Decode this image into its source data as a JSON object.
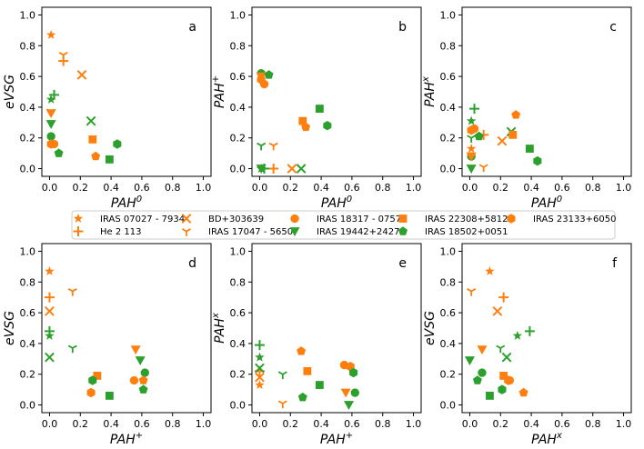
{
  "colors": {
    "orange": "#ff7f0e",
    "green": "#2ca02c"
  },
  "chart_data": {
    "type": "scatter",
    "grid": false,
    "legend_placement": "center, between rows",
    "legend": [
      {
        "name": "IRAS 07027 - 7934",
        "marker": "star"
      },
      {
        "name": "He 2 113",
        "marker": "plus"
      },
      {
        "name": "BD+303639",
        "marker": "x"
      },
      {
        "name": "IRAS 17047 - 5650",
        "marker": "tri_down"
      },
      {
        "name": "IRAS 18317 - 0757",
        "marker": "circle"
      },
      {
        "name": "IRAS 19442+2427",
        "marker": "triangle_down"
      },
      {
        "name": "IRAS 22308+5812",
        "marker": "square"
      },
      {
        "name": "IRAS 18502+0051",
        "marker": "pentagon"
      },
      {
        "name": "IRAS 23133+6050",
        "marker": "hexagon"
      }
    ],
    "panels": [
      {
        "label": "a",
        "xlabel": "PAH",
        "xsup": "0",
        "ylabel": "eVSG",
        "ysup": "",
        "xlim": [
          -0.05,
          1.05
        ],
        "ylim": [
          -0.05,
          1.05
        ],
        "xticks": [
          "0.0",
          "0.2",
          "0.4",
          "0.6",
          "0.8",
          "1.0"
        ],
        "yticks": [
          "0.0",
          "0.2",
          "0.4",
          "0.6",
          "0.8",
          "1.0"
        ],
        "points": [
          {
            "m": "star",
            "c": "orange",
            "x": 0.01,
            "y": 0.87
          },
          {
            "m": "star",
            "c": "green",
            "x": 0.01,
            "y": 0.45
          },
          {
            "m": "plus",
            "c": "orange",
            "x": 0.09,
            "y": 0.7
          },
          {
            "m": "plus",
            "c": "green",
            "x": 0.03,
            "y": 0.48
          },
          {
            "m": "x",
            "c": "orange",
            "x": 0.21,
            "y": 0.61
          },
          {
            "m": "x",
            "c": "green",
            "x": 0.27,
            "y": 0.31
          },
          {
            "m": "tri_down",
            "c": "orange",
            "x": 0.09,
            "y": 0.74
          },
          {
            "m": "tri_down",
            "c": "green",
            "x": 0.01,
            "y": 0.37
          },
          {
            "m": "circle",
            "c": "orange",
            "x": 0.03,
            "y": 0.16
          },
          {
            "m": "circle",
            "c": "green",
            "x": 0.01,
            "y": 0.21
          },
          {
            "m": "triangle_down",
            "c": "orange",
            "x": 0.01,
            "y": 0.36
          },
          {
            "m": "triangle_down",
            "c": "green",
            "x": 0.01,
            "y": 0.29
          },
          {
            "m": "square",
            "c": "orange",
            "x": 0.28,
            "y": 0.19
          },
          {
            "m": "square",
            "c": "green",
            "x": 0.39,
            "y": 0.06
          },
          {
            "m": "pentagon",
            "c": "orange",
            "x": 0.3,
            "y": 0.08
          },
          {
            "m": "pentagon",
            "c": "green",
            "x": 0.06,
            "y": 0.1
          },
          {
            "m": "hexagon",
            "c": "orange",
            "x": 0.01,
            "y": 0.16
          },
          {
            "m": "hexagon",
            "c": "green",
            "x": 0.44,
            "y": 0.16
          }
        ]
      },
      {
        "label": "b",
        "xlabel": "PAH",
        "xsup": "0",
        "ylabel": "PAH",
        "ysup": "+",
        "xlim": [
          -0.05,
          1.05
        ],
        "ylim": [
          -0.05,
          1.05
        ],
        "xticks": [
          "0.0",
          "0.2",
          "0.4",
          "0.6",
          "0.8",
          "1.0"
        ],
        "yticks": [
          "0.0",
          "0.2",
          "0.4",
          "0.6",
          "0.8",
          "1.0"
        ],
        "points": [
          {
            "m": "star",
            "c": "orange",
            "x": 0.01,
            "y": 0.0
          },
          {
            "m": "star",
            "c": "green",
            "x": 0.01,
            "y": 0.0
          },
          {
            "m": "plus",
            "c": "orange",
            "x": 0.09,
            "y": 0.0
          },
          {
            "m": "plus",
            "c": "green",
            "x": 0.03,
            "y": 0.0
          },
          {
            "m": "x",
            "c": "orange",
            "x": 0.21,
            "y": 0.0
          },
          {
            "m": "x",
            "c": "green",
            "x": 0.27,
            "y": 0.0
          },
          {
            "m": "tri_down",
            "c": "orange",
            "x": 0.09,
            "y": 0.15
          },
          {
            "m": "tri_down",
            "c": "green",
            "x": 0.01,
            "y": 0.15
          },
          {
            "m": "circle",
            "c": "orange",
            "x": 0.03,
            "y": 0.55
          },
          {
            "m": "circle",
            "c": "green",
            "x": 0.01,
            "y": 0.62
          },
          {
            "m": "triangle_down",
            "c": "orange",
            "x": 0.01,
            "y": 0.6
          },
          {
            "m": "triangle_down",
            "c": "green",
            "x": 0.01,
            "y": 0.0
          },
          {
            "m": "square",
            "c": "orange",
            "x": 0.28,
            "y": 0.31
          },
          {
            "m": "square",
            "c": "green",
            "x": 0.39,
            "y": 0.39
          },
          {
            "m": "pentagon",
            "c": "orange",
            "x": 0.3,
            "y": 0.27
          },
          {
            "m": "pentagon",
            "c": "green",
            "x": 0.06,
            "y": 0.61
          },
          {
            "m": "hexagon",
            "c": "orange",
            "x": 0.01,
            "y": 0.58
          },
          {
            "m": "hexagon",
            "c": "green",
            "x": 0.44,
            "y": 0.28
          }
        ]
      },
      {
        "label": "c",
        "xlabel": "PAH",
        "xsup": "0",
        "ylabel": "PAH",
        "ysup": "x",
        "xlim": [
          -0.05,
          1.05
        ],
        "ylim": [
          -0.05,
          1.05
        ],
        "xticks": [
          "0.0",
          "0.2",
          "0.4",
          "0.6",
          "0.8",
          "1.0"
        ],
        "yticks": [
          "0.0",
          "0.2",
          "0.4",
          "0.6",
          "0.8",
          "1.0"
        ],
        "points": [
          {
            "m": "star",
            "c": "orange",
            "x": 0.01,
            "y": 0.13
          },
          {
            "m": "star",
            "c": "green",
            "x": 0.01,
            "y": 0.31
          },
          {
            "m": "plus",
            "c": "orange",
            "x": 0.09,
            "y": 0.22
          },
          {
            "m": "plus",
            "c": "green",
            "x": 0.03,
            "y": 0.39
          },
          {
            "m": "x",
            "c": "orange",
            "x": 0.21,
            "y": 0.18
          },
          {
            "m": "x",
            "c": "green",
            "x": 0.27,
            "y": 0.24
          },
          {
            "m": "tri_down",
            "c": "orange",
            "x": 0.09,
            "y": 0.01
          },
          {
            "m": "tri_down",
            "c": "green",
            "x": 0.01,
            "y": 0.2
          },
          {
            "m": "circle",
            "c": "orange",
            "x": 0.03,
            "y": 0.26
          },
          {
            "m": "circle",
            "c": "green",
            "x": 0.01,
            "y": 0.08
          },
          {
            "m": "triangle_down",
            "c": "orange",
            "x": 0.01,
            "y": 0.08
          },
          {
            "m": "triangle_down",
            "c": "green",
            "x": 0.01,
            "y": 0.0
          },
          {
            "m": "square",
            "c": "orange",
            "x": 0.28,
            "y": 0.22
          },
          {
            "m": "square",
            "c": "green",
            "x": 0.39,
            "y": 0.13
          },
          {
            "m": "pentagon",
            "c": "orange",
            "x": 0.3,
            "y": 0.35
          },
          {
            "m": "pentagon",
            "c": "green",
            "x": 0.06,
            "y": 0.21
          },
          {
            "m": "hexagon",
            "c": "orange",
            "x": 0.01,
            "y": 0.25
          },
          {
            "m": "hexagon",
            "c": "green",
            "x": 0.44,
            "y": 0.05
          }
        ]
      },
      {
        "label": "d",
        "xlabel": "PAH",
        "xsup": "+",
        "ylabel": "eVSG",
        "ysup": "",
        "xlim": [
          -0.05,
          1.05
        ],
        "ylim": [
          -0.05,
          1.05
        ],
        "xticks": [
          "0.0",
          "0.2",
          "0.4",
          "0.6",
          "0.8",
          "1.0"
        ],
        "yticks": [
          "0.0",
          "0.2",
          "0.4",
          "0.6",
          "0.8",
          "1.0"
        ],
        "points": [
          {
            "m": "star",
            "c": "orange",
            "x": 0.0,
            "y": 0.87
          },
          {
            "m": "star",
            "c": "green",
            "x": 0.0,
            "y": 0.45
          },
          {
            "m": "plus",
            "c": "orange",
            "x": 0.0,
            "y": 0.7
          },
          {
            "m": "plus",
            "c": "green",
            "x": 0.0,
            "y": 0.48
          },
          {
            "m": "x",
            "c": "orange",
            "x": 0.0,
            "y": 0.61
          },
          {
            "m": "x",
            "c": "green",
            "x": 0.0,
            "y": 0.31
          },
          {
            "m": "tri_down",
            "c": "orange",
            "x": 0.15,
            "y": 0.74
          },
          {
            "m": "tri_down",
            "c": "green",
            "x": 0.15,
            "y": 0.37
          },
          {
            "m": "circle",
            "c": "orange",
            "x": 0.55,
            "y": 0.16
          },
          {
            "m": "circle",
            "c": "green",
            "x": 0.62,
            "y": 0.21
          },
          {
            "m": "triangle_down",
            "c": "orange",
            "x": 0.56,
            "y": 0.36
          },
          {
            "m": "triangle_down",
            "c": "green",
            "x": 0.59,
            "y": 0.29
          },
          {
            "m": "square",
            "c": "orange",
            "x": 0.31,
            "y": 0.19
          },
          {
            "m": "square",
            "c": "green",
            "x": 0.39,
            "y": 0.06
          },
          {
            "m": "pentagon",
            "c": "orange",
            "x": 0.61,
            "y": 0.16
          },
          {
            "m": "pentagon",
            "c": "green",
            "x": 0.61,
            "y": 0.1
          },
          {
            "m": "hexagon",
            "c": "orange",
            "x": 0.27,
            "y": 0.08
          },
          {
            "m": "hexagon",
            "c": "green",
            "x": 0.28,
            "y": 0.16
          }
        ]
      },
      {
        "label": "e",
        "xlabel": "PAH",
        "xsup": "+",
        "ylabel": "PAH",
        "ysup": "x",
        "xlim": [
          -0.05,
          1.05
        ],
        "ylim": [
          -0.05,
          1.05
        ],
        "xticks": [
          "0.0",
          "0.2",
          "0.4",
          "0.6",
          "0.8",
          "1.0"
        ],
        "yticks": [
          "0.0",
          "0.2",
          "0.4",
          "0.6",
          "0.8",
          "1.0"
        ],
        "points": [
          {
            "m": "star",
            "c": "orange",
            "x": 0.0,
            "y": 0.13
          },
          {
            "m": "star",
            "c": "green",
            "x": 0.0,
            "y": 0.31
          },
          {
            "m": "plus",
            "c": "orange",
            "x": 0.0,
            "y": 0.22
          },
          {
            "m": "plus",
            "c": "green",
            "x": 0.0,
            "y": 0.39
          },
          {
            "m": "x",
            "c": "orange",
            "x": 0.0,
            "y": 0.18
          },
          {
            "m": "x",
            "c": "green",
            "x": 0.0,
            "y": 0.24
          },
          {
            "m": "tri_down",
            "c": "orange",
            "x": 0.15,
            "y": 0.01
          },
          {
            "m": "tri_down",
            "c": "green",
            "x": 0.15,
            "y": 0.2
          },
          {
            "m": "circle",
            "c": "orange",
            "x": 0.55,
            "y": 0.26
          },
          {
            "m": "circle",
            "c": "green",
            "x": 0.62,
            "y": 0.08
          },
          {
            "m": "triangle_down",
            "c": "orange",
            "x": 0.56,
            "y": 0.08
          },
          {
            "m": "triangle_down",
            "c": "green",
            "x": 0.58,
            "y": 0.0
          },
          {
            "m": "square",
            "c": "orange",
            "x": 0.31,
            "y": 0.22
          },
          {
            "m": "square",
            "c": "green",
            "x": 0.39,
            "y": 0.13
          },
          {
            "m": "pentagon",
            "c": "orange",
            "x": 0.27,
            "y": 0.35
          },
          {
            "m": "pentagon",
            "c": "green",
            "x": 0.28,
            "y": 0.05
          },
          {
            "m": "hexagon",
            "c": "orange",
            "x": 0.59,
            "y": 0.25
          },
          {
            "m": "hexagon",
            "c": "green",
            "x": 0.61,
            "y": 0.21
          }
        ]
      },
      {
        "label": "f",
        "xlabel": "PAH",
        "xsup": "x",
        "ylabel": "eVSG",
        "ysup": "",
        "xlim": [
          -0.05,
          1.05
        ],
        "ylim": [
          -0.05,
          1.05
        ],
        "xticks": [
          "0.0",
          "0.2",
          "0.4",
          "0.6",
          "0.8",
          "1.0"
        ],
        "yticks": [
          "0.0",
          "0.2",
          "0.4",
          "0.6",
          "0.8",
          "1.0"
        ],
        "points": [
          {
            "m": "star",
            "c": "orange",
            "x": 0.13,
            "y": 0.87
          },
          {
            "m": "star",
            "c": "green",
            "x": 0.31,
            "y": 0.45
          },
          {
            "m": "plus",
            "c": "orange",
            "x": 0.22,
            "y": 0.7
          },
          {
            "m": "plus",
            "c": "green",
            "x": 0.39,
            "y": 0.48
          },
          {
            "m": "x",
            "c": "orange",
            "x": 0.18,
            "y": 0.61
          },
          {
            "m": "x",
            "c": "green",
            "x": 0.24,
            "y": 0.31
          },
          {
            "m": "tri_down",
            "c": "orange",
            "x": 0.01,
            "y": 0.74
          },
          {
            "m": "tri_down",
            "c": "green",
            "x": 0.2,
            "y": 0.37
          },
          {
            "m": "circle",
            "c": "orange",
            "x": 0.26,
            "y": 0.16
          },
          {
            "m": "circle",
            "c": "green",
            "x": 0.08,
            "y": 0.21
          },
          {
            "m": "triangle_down",
            "c": "orange",
            "x": 0.08,
            "y": 0.36
          },
          {
            "m": "triangle_down",
            "c": "green",
            "x": 0.0,
            "y": 0.29
          },
          {
            "m": "square",
            "c": "orange",
            "x": 0.22,
            "y": 0.19
          },
          {
            "m": "square",
            "c": "green",
            "x": 0.13,
            "y": 0.06
          },
          {
            "m": "pentagon",
            "c": "orange",
            "x": 0.35,
            "y": 0.08
          },
          {
            "m": "pentagon",
            "c": "green",
            "x": 0.05,
            "y": 0.16
          },
          {
            "m": "hexagon",
            "c": "orange",
            "x": 0.25,
            "y": 0.16
          },
          {
            "m": "hexagon",
            "c": "green",
            "x": 0.21,
            "y": 0.1
          }
        ]
      }
    ]
  }
}
